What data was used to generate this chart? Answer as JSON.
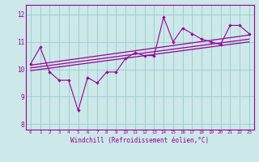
{
  "xlabel": "Windchill (Refroidissement éolien,°C)",
  "bg_color": "#cce8e8",
  "line_color": "#990099",
  "grid_color": "#99cccc",
  "xlim": [
    -0.5,
    23.5
  ],
  "ylim": [
    7.8,
    12.35
  ],
  "yticks": [
    8,
    9,
    10,
    11,
    12
  ],
  "xticks": [
    0,
    1,
    2,
    3,
    4,
    5,
    6,
    7,
    8,
    9,
    10,
    11,
    12,
    13,
    14,
    15,
    16,
    17,
    18,
    19,
    20,
    21,
    22,
    23
  ],
  "series1_x": [
    0,
    1,
    2,
    3,
    4,
    5,
    6,
    7,
    8,
    9,
    10,
    11,
    12,
    13,
    14,
    15,
    16,
    17,
    18,
    19,
    20,
    21,
    22,
    23
  ],
  "series1_y": [
    10.2,
    10.8,
    9.9,
    9.6,
    9.6,
    8.5,
    9.7,
    9.5,
    9.9,
    9.9,
    10.4,
    10.6,
    10.5,
    10.5,
    11.9,
    11.0,
    11.5,
    11.3,
    11.1,
    11.0,
    10.9,
    11.6,
    11.6,
    11.3
  ],
  "trend1_x": [
    0,
    23
  ],
  "trend1_y": [
    10.15,
    11.25
  ],
  "trend2_x": [
    0,
    23
  ],
  "trend2_y": [
    10.05,
    11.1
  ],
  "trend3_x": [
    0,
    23
  ],
  "trend3_y": [
    9.95,
    11.0
  ]
}
